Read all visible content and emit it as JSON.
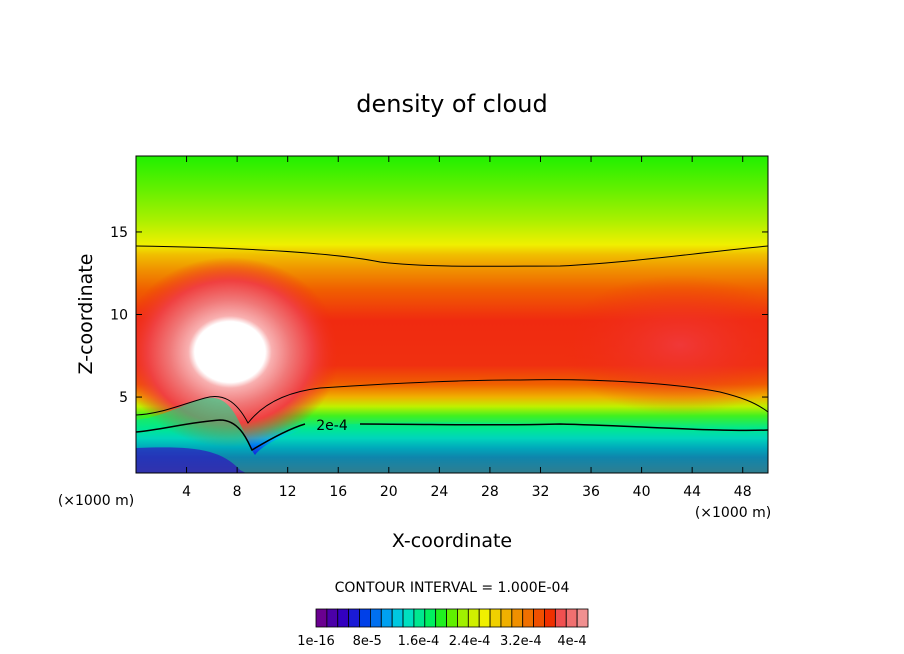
{
  "chart_data": {
    "type": "heatmap",
    "title": "density of cloud",
    "xlabel": "X-coordinate",
    "ylabel": "Z-coordinate",
    "x_unit": "(×1000 m)",
    "x_unit_right": "(×1000 m)",
    "xlim": [
      0,
      50
    ],
    "ylim": [
      0.4,
      19.6
    ],
    "x_ticks": [
      4,
      8,
      12,
      16,
      20,
      24,
      28,
      32,
      36,
      40,
      44,
      48
    ],
    "y_ticks": [
      5,
      10,
      15
    ],
    "contour_interval_text": "CONTOUR INTERVAL = 1.000E-04",
    "contour_label": "2e-4",
    "colorbar": {
      "labels": [
        "1e-16",
        "8e-5",
        "1.6e-4",
        "2.4e-4",
        "3.2e-4",
        "4e-4"
      ],
      "label_values": [
        0,
        8e-05,
        0.00016,
        0.00024,
        0.00032,
        0.0004
      ],
      "colors": [
        "#6a0090",
        "#4b00a8",
        "#3300c0",
        "#1a1ad6",
        "#0040e8",
        "#0070f0",
        "#00a0f0",
        "#00c8e0",
        "#00e0c0",
        "#00e890",
        "#00f060",
        "#20f020",
        "#60f000",
        "#a0f000",
        "#d0f000",
        "#f0f000",
        "#f0d000",
        "#f0b000",
        "#f09000",
        "#f07000",
        "#f05000",
        "#f03000",
        "#f05050",
        "#f07070",
        "#f09090"
      ]
    },
    "levels": [
      {
        "value": 5e-05,
        "color": "#3300c0"
      },
      {
        "value": 0.0001,
        "color": "#00a0f0"
      },
      {
        "value": 0.00015,
        "color": "#00e890"
      },
      {
        "value": 0.0002,
        "color": "#20f020"
      },
      {
        "value": 0.00025,
        "color": "#a0f000"
      },
      {
        "value": 0.0003,
        "color": "#f0d000"
      },
      {
        "value": 0.00035,
        "color": "#f09000"
      },
      {
        "value": 0.0004,
        "color": "#f05000"
      },
      {
        "value": 0.00045,
        "color": "#f02010"
      }
    ]
  }
}
